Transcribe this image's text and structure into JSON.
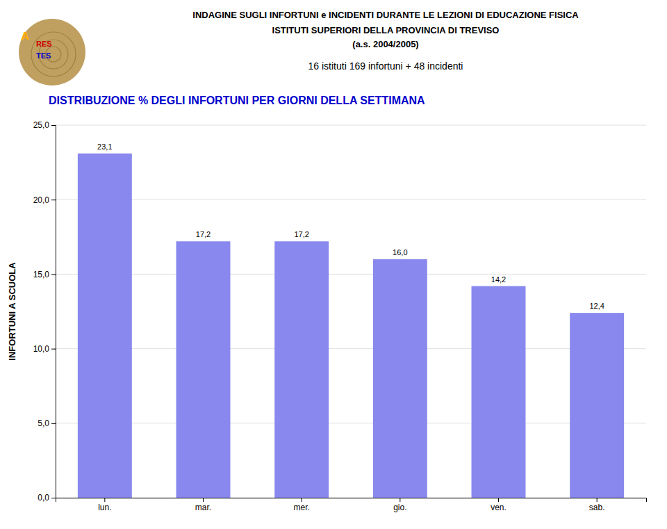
{
  "chart_data": {
    "type": "bar",
    "title": [
      "INDAGINE SUGLI INFORTUNI e INCIDENTI DURANTE LE LEZIONI DI EDUCAZIONE FISICA",
      "ISTITUTI SUPERIORI DELLA PROVINCIA DI TREVISO",
      "(a.s. 2004/2005)"
    ],
    "subtitle": [
      "16 istituti  169 infortuni +  48 incidenti",
      "DISTRIBUZIONE % DEGLI INFORTUNI PER GIORNI DELLA SETTIMANA"
    ],
    "annotations": [
      "A",
      "RES",
      "TES"
    ],
    "ylabel": "INFORTUNI A SCUOLA",
    "categories": [
      "lun.",
      "mar.",
      "mer.",
      "gio.",
      "ven.",
      "sab."
    ],
    "values": [
      23.1,
      17.2,
      17.2,
      16.0,
      14.2,
      12.4
    ],
    "value_labels": [
      "23,1",
      "17,2",
      "17,2",
      "16,0",
      "14,2",
      "12,4"
    ],
    "data_labels": true,
    "color": "#8888EE",
    "ylim": [
      0,
      25
    ],
    "yticks": [
      {
        "value": 0,
        "label": "0,0"
      },
      {
        "value": 5,
        "label": "5,0"
      },
      {
        "value": 10,
        "label": "10,0"
      },
      {
        "value": 15,
        "label": "15,0"
      },
      {
        "value": 20,
        "label": "20,0"
      },
      {
        "value": 25,
        "label": "25,0"
      }
    ],
    "grid": true
  }
}
